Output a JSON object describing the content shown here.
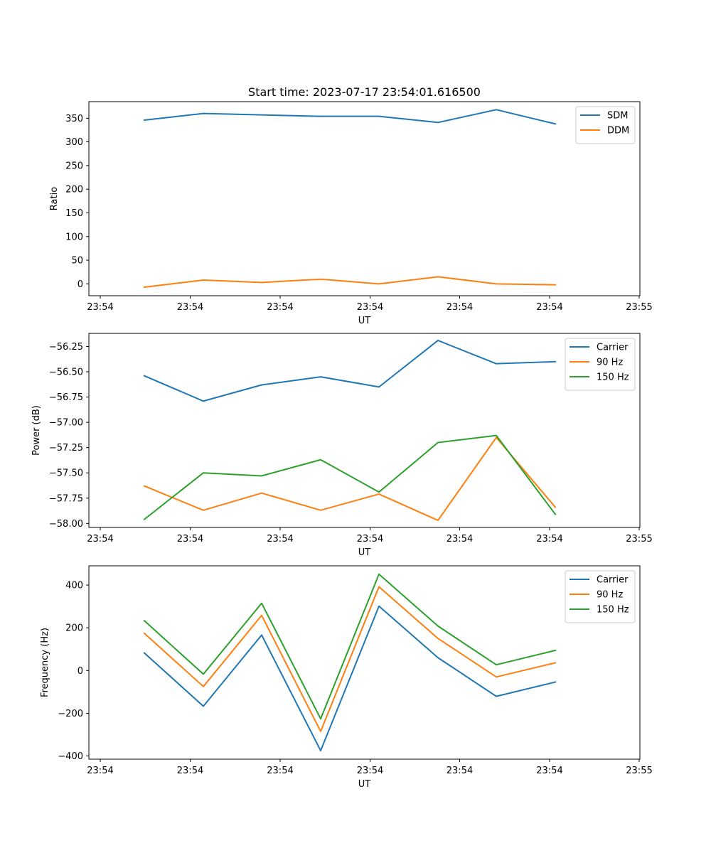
{
  "chart_data": [
    {
      "type": "line",
      "title": "Start time: 2023-07-17 23:54:01.616500",
      "xlabel": "UT",
      "ylabel": "Ratio",
      "x_tick_labels": [
        "23:54",
        "23:54",
        "23:54",
        "23:54",
        "23:54",
        "23:54",
        "23:54"
      ],
      "x_tick_last": "23:55",
      "y_ticks": [
        0,
        50,
        100,
        150,
        200,
        250,
        300,
        350
      ],
      "ylim": [
        -25,
        385
      ],
      "legend_position": "top-right",
      "series": [
        {
          "name": "SDM",
          "color": "#1f77b4",
          "values": [
            346,
            360,
            357,
            354,
            354,
            341,
            368,
            338
          ]
        },
        {
          "name": "DDM",
          "color": "#ff7f0e",
          "values": [
            -7,
            8,
            3,
            10,
            0,
            15,
            0,
            -2
          ]
        }
      ]
    },
    {
      "type": "line",
      "title": "",
      "xlabel": "UT",
      "ylabel": "Power (dB)",
      "x_tick_labels": [
        "23:54",
        "23:54",
        "23:54",
        "23:54",
        "23:54",
        "23:54",
        "23:54"
      ],
      "x_tick_last": "23:55",
      "y_ticks": [
        -58.0,
        -57.75,
        -57.5,
        -57.25,
        -57.0,
        -56.75,
        -56.5,
        -56.25
      ],
      "y_tick_labels": [
        "−58.00",
        "−57.75",
        "−57.50",
        "−57.25",
        "−57.00",
        "−56.75",
        "−56.50",
        "−56.25"
      ],
      "ylim": [
        -58.04,
        -56.12
      ],
      "legend_position": "top-right",
      "series": [
        {
          "name": "Carrier",
          "color": "#1f77b4",
          "values": [
            -56.54,
            -56.79,
            -56.63,
            -56.55,
            -56.65,
            -56.19,
            -56.42,
            -56.4
          ]
        },
        {
          "name": "90 Hz",
          "color": "#ff7f0e",
          "values": [
            -57.63,
            -57.87,
            -57.7,
            -57.87,
            -57.71,
            -57.97,
            -57.15,
            -57.84
          ]
        },
        {
          "name": "150 Hz",
          "color": "#2ca02c",
          "values": [
            -57.96,
            -57.5,
            -57.53,
            -57.37,
            -57.69,
            -57.2,
            -57.13,
            -57.91
          ]
        }
      ]
    },
    {
      "type": "line",
      "title": "",
      "xlabel": "UT",
      "ylabel": "Frequency (Hz)",
      "x_tick_labels": [
        "23:54",
        "23:54",
        "23:54",
        "23:54",
        "23:54",
        "23:54",
        "23:54"
      ],
      "x_tick_last": "23:55",
      "y_ticks": [
        -400,
        -200,
        0,
        200,
        400
      ],
      "y_tick_labels": [
        "−400",
        "−200",
        "0",
        "200",
        "400"
      ],
      "ylim": [
        -415,
        490
      ],
      "legend_position": "top-right",
      "series": [
        {
          "name": "Carrier",
          "color": "#1f77b4",
          "values": [
            82,
            -167,
            166,
            -375,
            301,
            60,
            -121,
            -54
          ]
        },
        {
          "name": "90 Hz",
          "color": "#ff7f0e",
          "values": [
            174,
            -75,
            258,
            -285,
            392,
            150,
            -30,
            36
          ]
        },
        {
          "name": "150 Hz",
          "color": "#2ca02c",
          "values": [
            233,
            -17,
            315,
            -226,
            451,
            208,
            27,
            94
          ]
        }
      ]
    }
  ]
}
